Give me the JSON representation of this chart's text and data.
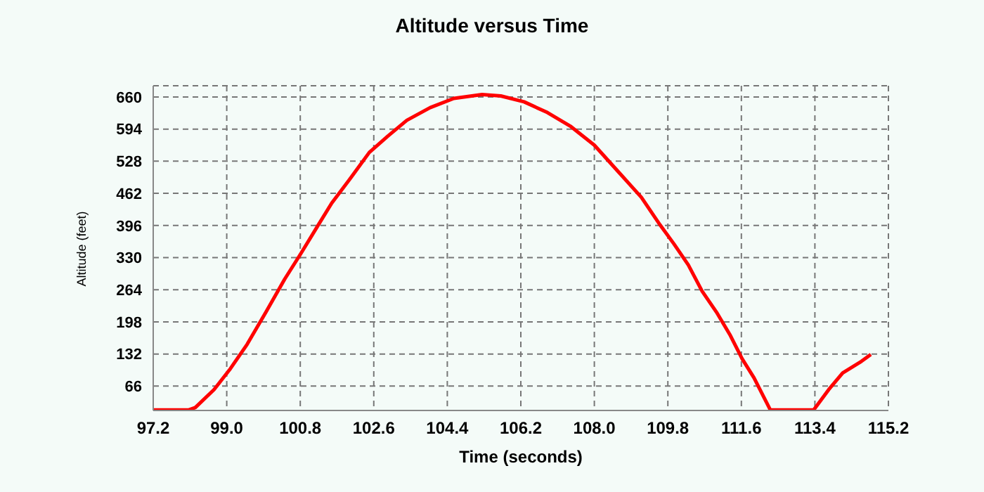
{
  "chart_data": {
    "type": "line",
    "title": "Altitude versus Time",
    "xlabel": "Time (seconds)",
    "ylabel": "Altitude (feet)",
    "xlim": [
      97.2,
      115.2
    ],
    "xticks": [
      97.2,
      {
        "value": 99,
        "label": "99.0"
      },
      100.8,
      102.6,
      104.4,
      106.2,
      {
        "value": 108,
        "label": "108.0"
      },
      109.8,
      111.6,
      113.4,
      115.2
    ],
    "ylim": [
      16,
      683
    ],
    "yticks": [
      66,
      132,
      198,
      264,
      330,
      396,
      462,
      528,
      594,
      660
    ],
    "grid": true,
    "legend": false,
    "marker": "none",
    "line_style": "solid",
    "series": [
      {
        "color": "#ff0000",
        "x": [
          97.2,
          98.06,
          98.23,
          98.69,
          99.09,
          99.5,
          99.96,
          100.42,
          100.82,
          101.22,
          101.57,
          102.03,
          102.49,
          102.95,
          103.41,
          103.98,
          104.56,
          105.25,
          105.71,
          106.28,
          106.85,
          107.43,
          108.0,
          108.57,
          109.15,
          109.61,
          109.95,
          110.3,
          110.64,
          110.99,
          111.33,
          111.62,
          111.91,
          112.31,
          113.37,
          113.74,
          114.08,
          114.54,
          114.77
        ],
        "values": [
          17,
          17,
          22,
          59,
          102,
          152,
          218,
          286,
          339,
          394,
          442,
          493,
          546,
          580,
          612,
          638,
          657,
          665,
          662,
          650,
          628,
          599,
          561,
          508,
          454,
          397,
          358,
          315,
          261,
          218,
          170,
          122,
          83,
          17,
          17,
          59,
          93,
          117,
          131
        ]
      }
    ]
  }
}
